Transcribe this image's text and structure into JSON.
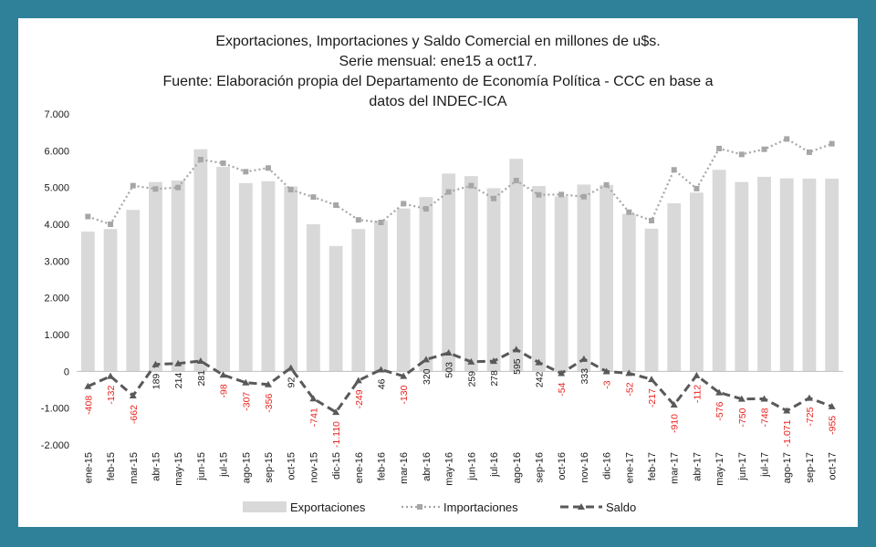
{
  "chart_data": {
    "type": "bar",
    "title_lines": [
      "Exportaciones, Importaciones y Saldo Comercial en millones de u$s.",
      "Serie mensual: ene15 a oct17.",
      "Fuente: Elaboración propia del Departamento de Economía Política - CCC en base a",
      "datos del INDEC-ICA"
    ],
    "categories": [
      "ene-15",
      "feb-15",
      "mar-15",
      "abr-15",
      "may-15",
      "jun-15",
      "jul-15",
      "ago-15",
      "sep-15",
      "oct-15",
      "nov-15",
      "dic-15",
      "ene-16",
      "feb-16",
      "mar-16",
      "abr-16",
      "may-16",
      "jun-16",
      "jul-16",
      "ago-16",
      "sep-16",
      "oct-16",
      "nov-16",
      "dic-16",
      "ene-17",
      "feb-17",
      "mar-17",
      "abr-17",
      "may-17",
      "jun-17",
      "jul-17",
      "ago-17",
      "sep-17",
      "oct-17"
    ],
    "ylim": [
      -2000,
      7000
    ],
    "yticks": [
      -2000,
      -1000,
      0,
      1000,
      2000,
      3000,
      4000,
      5000,
      6000,
      7000
    ],
    "ytick_labels": [
      "-2.000",
      "-1.000",
      "0",
      "1.000",
      "2.000",
      "3.000",
      "4.000",
      "5.000",
      "6.000",
      "7.000"
    ],
    "legend_position": "bottom",
    "colors": {
      "exportaciones": "#d9d9d9",
      "importaciones": "#a6a6a6",
      "saldo": "#595959",
      "negative_label": "#e8231f",
      "frame": "#2e8199"
    },
    "series": [
      {
        "name": "Exportaciones",
        "kind": "bar",
        "values": [
          3800,
          3870,
          4390,
          5150,
          5190,
          6040,
          5560,
          5120,
          5170,
          5030,
          4000,
          3410,
          3870,
          4100,
          4430,
          4740,
          5380,
          5310,
          4980,
          5780,
          5040,
          4760,
          5080,
          5070,
          4280,
          3880,
          4570,
          4860,
          5480,
          5150,
          5290,
          5250,
          5240,
          5240
        ]
      },
      {
        "name": "Importaciones",
        "kind": "line",
        "values": [
          4210,
          4000,
          5050,
          4960,
          5000,
          5760,
          5660,
          5430,
          5530,
          4940,
          4740,
          4520,
          4120,
          4050,
          4560,
          4420,
          4880,
          5050,
          4700,
          5190,
          4800,
          4810,
          4750,
          5070,
          4330,
          4100,
          5480,
          4970,
          6060,
          5900,
          6040,
          6320,
          5960,
          6190
        ]
      },
      {
        "name": "Saldo",
        "kind": "line",
        "values": [
          -408,
          -132,
          -662,
          189,
          214,
          281,
          -98,
          -307,
          -356,
          92,
          -741,
          -1110,
          -249,
          46,
          -130,
          320,
          503,
          259,
          278,
          595,
          242,
          -54,
          333,
          -3,
          -52,
          -217,
          -910,
          -112,
          -576,
          -750,
          -748,
          -1071,
          -725,
          -955
        ],
        "labels": [
          "-408",
          "-132",
          "-662",
          "189",
          "214",
          "281",
          "-98",
          "-307",
          "-356",
          "92",
          "-741",
          "-1.110",
          "-249",
          "46",
          "-130",
          "320",
          "503",
          "259",
          "278",
          "595",
          "242",
          "-54",
          "333",
          "-3",
          "-52",
          "-217",
          "-910",
          "-112",
          "-576",
          "-750",
          "-748",
          "-1.071",
          "-725",
          "-955"
        ]
      }
    ]
  }
}
